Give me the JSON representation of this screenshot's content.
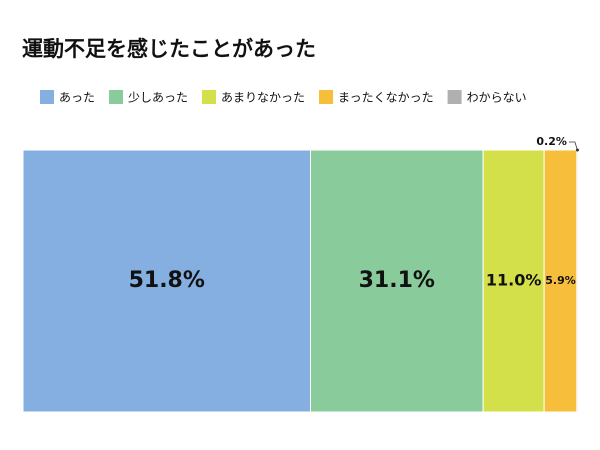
{
  "chart_data": {
    "type": "stacked-bar-100",
    "title": "運動不足を感じたことがあった",
    "series": [
      {
        "name": "あった",
        "color": "#85afe0",
        "values": [
          51.8
        ],
        "value_labels": [
          "51.8%"
        ]
      },
      {
        "name": "少しあった",
        "color": "#8acb9c",
        "values": [
          31.1
        ],
        "value_labels": [
          "31.1%"
        ]
      },
      {
        "name": "あまりなかった",
        "color": "#d4e04a",
        "values": [
          11.0
        ],
        "value_labels": [
          "11.0%"
        ]
      },
      {
        "name": "まったくなかった",
        "color": "#f7be3c",
        "values": [
          5.9
        ],
        "value_labels": [
          "5.9%"
        ]
      },
      {
        "name": "わからない",
        "color": "#b0b0b0",
        "values": [
          0.2
        ],
        "value_labels": [
          "0.2%"
        ]
      }
    ]
  }
}
